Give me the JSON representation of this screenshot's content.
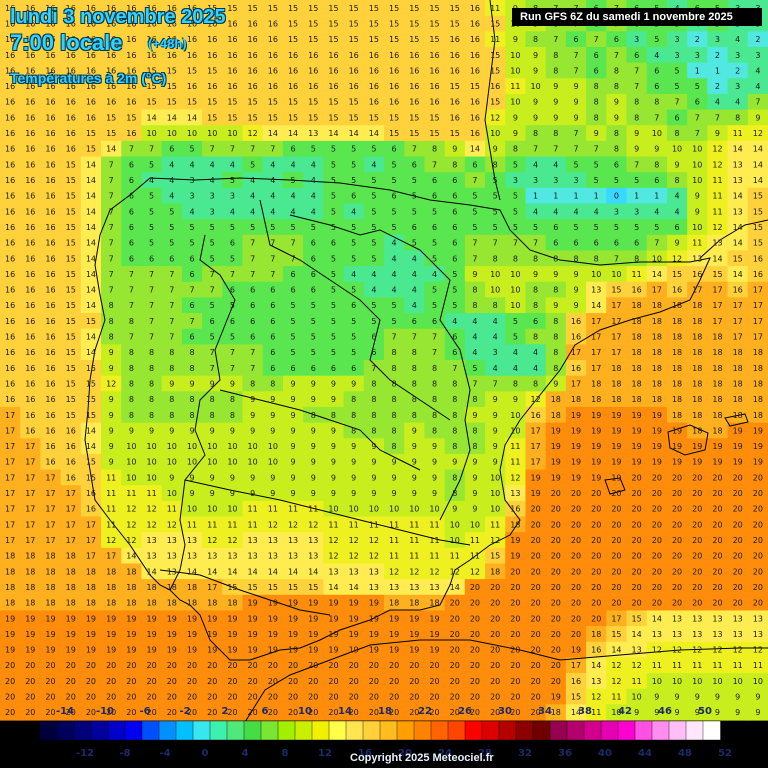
{
  "header": {
    "date_line": "lundi 3 novembre 2025",
    "time_line": "7:00 locale",
    "lead_time": "(+48h)",
    "variable": "Températures à 2m (°C)"
  },
  "run_info": "Run GFS 6Z du samedi 1 novembre 2025",
  "copyright": "Copyright 2025 Meteociel.fr",
  "legend": {
    "top_labels": [
      "-14",
      "-10",
      "-6",
      "-2",
      "2",
      "6",
      "10",
      "14",
      "18",
      "22",
      "26",
      "30",
      "34",
      "38",
      "42",
      "46",
      "50"
    ],
    "bottom_labels": [
      "-12",
      "-8",
      "-4",
      "0",
      "4",
      "8",
      "12",
      "16",
      "20",
      "24",
      "28",
      "32",
      "36",
      "40",
      "44",
      "48",
      "52"
    ],
    "colors": [
      "#00003c",
      "#00005a",
      "#00007a",
      "#00009c",
      "#0000c8",
      "#0000f0",
      "#0050ff",
      "#0090ff",
      "#00c0ff",
      "#38e6f0",
      "#3cf0b0",
      "#50e878",
      "#46dc46",
      "#78e632",
      "#a0f000",
      "#c8f000",
      "#f0f000",
      "#ffff4a",
      "#ffe650",
      "#ffd23c",
      "#ffbe1e",
      "#ffa000",
      "#ff8200",
      "#ff6400",
      "#ff4600",
      "#ff0000",
      "#dc0000",
      "#b40000",
      "#8c0000",
      "#700000",
      "#960050",
      "#b4006e",
      "#d2008c",
      "#e600b4",
      "#ff00d2",
      "#ff50e6",
      "#ff8cf0",
      "#ffbef5",
      "#ffe6fa",
      "#ffffff"
    ]
  },
  "colors": {
    "title": "#33d3ff",
    "label_text": "#1a1a1a",
    "border_line": "#000000"
  },
  "map": {
    "name": "Iberian Peninsula temperature field",
    "value_rows": [
      "16 16 16 16 16 16 16 16 16 16 15 15 15 15 15 15 15 15 15 15 15 15 15 16 11 9 8 7 7 6 7 6 5 4 6 5 3 3",
      "16 16 16 16 16 16 16 16 16 16 16 16 16 16 15 15 15 15 15 15 15 15 15 16 15 10 9 8 7 6 7 6 5 5 4 5 3 3",
      "16 16 16 16 16 16 16 16 16 16 16 16 16 16 15 15 15 15 15 15 15 15 16 16 11 9 8 7 6 7 6 3 5 3 2 3 4 2",
      "16 16 16 16 16 16 16 16 16 16 16 16 16 16 16 16 16 16 16 16 16 16 16 16 15 10 9 8 7 6 7 6 4 3 3 2 3 3",
      "16 16 16 16 16 16 16 15 15 15 15 16 16 16 16 16 16 16 16 16 16 16 16 16 15 10 9 8 7 6 8 7 6 5 1 1 2 4",
      "16 16 16 16 16 16 16 15 15 16 16 16 16 16 16 16 16 16 16 16 16 16 15 15 16 11 10 9 9 8 8 7 6 5 5 2 3 4",
      "16 16 16 16 16 16 16 15 15 15 15 15 15 15 15 15 15 15 16 16 16 16 16 16 15 10 9 9 9 8 9 8 8 7 6 4 4 7",
      "16 16 16 16 16 15 15 14 14 14 15 15 15 15 15 15 15 15 15 15 15 15 16 16 12 9 9 9 9 8 9 8 7 6 7 7 8 9",
      "16 16 16 16 15 15 16 10 10 10 10 10 12 14 14 13 14 14 14 15 15 15 15 16 10 9 8 8 7 9 8 9 10 8 7 9 11 12",
      "16 16 16 16 15 14 7 7 6 5 7 7 7 7 6 5 5 5 5 6 7 8 9 14 9 8 7 7 7 7 8 9 9 10 10 12 14 14",
      "16 16 16 15 14 7 6 5 4 4 4 4 5 4 4 4 5 5 4 5 6 7 8 6 8 5 4 4 5 5 6 7 8 9 10 12 13 14",
      "16 16 16 15 14 7 6 4 4 3 4 5 4 4 5 4 5 5 5 5 5 6 6 7 5 3 3 3 3 5 5 5 6 8 10 11 13 14",
      "16 16 16 15 14 7 6 5 4 3 3 3 4 4 4 4 5 6 5 6 5 6 6 5 5 5 1 1 1 1 0 1 1 4 9 11 14 15",
      "16 16 16 15 14 7 6 5 5 4 3 4 4 4 4 4 5 4 5 5 5 5 6 5 5 5 4 4 4 4 3 3 4 4 9 11 13 15",
      "16 16 16 15 14 7 6 5 5 5 5 5 5 5 5 5 5 5 5 5 6 6 6 5 5 5 5 6 5 5 5 5 5 6 10 12 14 15",
      "16 16 16 15 14 7 6 5 5 5 5 6 7 7 7 6 6 5 5 4 5 5 6 7 7 7 7 6 6 6 6 6 7 9 11 13 14 15",
      "16 16 16 15 14 7 6 6 6 6 5 5 7 7 7 6 5 5 5 4 4 5 6 7 8 8 8 8 8 8 7 8 10 12 13 14 15 16",
      "16 16 16 15 14 7 7 7 7 6 7 7 7 7 6 6 5 4 4 4 4 4 5 9 10 10 9 9 9 10 10 11 14 15 16 15 14 16",
      "16 16 16 15 14 7 7 7 7 7 7 6 6 6 6 6 5 5 4 4 4 5 5 8 10 10 8 8 9 13 15 16 17 16 17 17 16 17",
      "16 16 16 15 14 8 7 7 7 6 5 5 6 6 5 5 5 6 5 5 4 5 5 8 8 10 8 9 9 14 17 18 18 18 18 17 17 17",
      "16 16 16 15 15 8 8 7 7 7 6 6 6 6 5 5 5 5 5 5 6 6 4 4 4 5 6 8 16 17 17 18 18 18 18 17 17 17",
      "16 16 16 15 14 8 7 7 7 6 5 5 6 6 5 5 5 5 6 7 7 7 6 4 4 5 8 8 16 17 17 18 18 18 18 18 17 17",
      "16 16 16 15 14 9 8 8 8 8 7 7 7 6 5 5 5 5 6 8 8 7 6 4 3 4 4 8 17 17 17 18 18 18 18 18 18 18",
      "16 16 16 15 15 9 8 8 8 8 7 7 7 6 6 6 6 6 7 8 8 8 7 5 4 4 4 8 16 17 18 18 18 18 18 18 18 18",
      "16 16 16 15 15 12 8 8 9 9 9 9 8 8 9 9 9 9 8 8 8 8 8 7 7 8 8 9 17 18 18 18 18 18 18 18 18 18",
      "16 16 16 15 15 9 8 8 8 8 8 8 9 9 9 9 9 8 8 8 8 8 8 8 9 9 12 18 18 18 18 18 18 18 18 18 18 18",
      "17 16 16 15 15 9 8 8 8 8 8 8 9 9 9 8 8 8 8 8 8 8 8 9 9 10 16 18 19 19 19 19 19 18 18 18 18 18",
      "17 16 16 16 14 9 9 9 9 9 9 9 9 9 9 9 9 8 8 8 9 8 8 8 9 10 17 19 19 19 19 19 19 19 18 18 19 19",
      "17 17 16 16 14 9 10 10 10 10 10 10 10 10 9 9 9 9 9 8 9 9 8 8 9 11 17 19 19 19 19 19 19 19 19 19 19 19",
      "17 17 16 16 15 9 10 10 10 10 10 10 10 10 9 9 9 9 9 9 9 9 9 9 9 11 17 19 19 19 19 19 19 19 19 19 19 19",
      "17 17 17 16 15 11 10 10 9 9 9 9 9 9 9 9 9 9 9 9 9 9 8 9 10 12 19 19 19 19 19 20 20 20 20 20 20 20",
      "17 17 17 17 16 11 11 11 10 9 9 9 9 9 9 9 9 9 9 9 9 9 8 9 10 13 19 20 20 20 20 20 20 20 20 20 20 20",
      "17 17 17 17 16 11 12 12 11 10 10 10 11 11 11 11 10 10 10 10 10 10 9 9 10 16 20 20 20 20 20 20 20 20 20 20 20 20",
      "17 17 17 17 17 11 12 12 12 11 11 11 11 12 12 12 11 11 11 11 11 11 10 10 11 18 20 20 20 20 20 20 20 20 20 20 20 20",
      "17 17 17 17 17 12 12 13 13 13 12 12 13 13 13 13 12 12 12 11 11 11 10 11 12 19 20 20 20 20 20 20 20 20 20 20 20 20",
      "18 18 18 18 17 17 14 13 13 13 13 13 13 13 13 13 12 12 12 11 11 11 11 11 15 19 20 20 20 20 20 20 20 20 20 20 20 20",
      "18 18 18 18 18 18 18 14 13 14 14 14 14 14 14 14 13 13 13 12 12 12 12 12 18 20 20 20 20 20 20 20 20 20 20 20 20 20",
      "18 18 18 18 18 18 18 18 18 18 17 15 15 15 15 15 14 14 13 13 13 13 14 20 20 20 20 20 20 20 20 20 20 20 20 20 20 20",
      "18 18 18 18 18 18 18 18 18 18 18 18 19 19 19 19 19 19 19 18 18 18 20 20 20 20 20 20 20 20 20 20 20 20 20 20 20 20",
      "19 19 19 19 19 19 19 19 19 19 19 19 19 19 19 19 19 19 19 19 19 19 20 20 20 20 20 20 20 20 17 15 14 13 13 13 13 13",
      "19 19 19 19 19 19 19 19 19 19 19 19 19 19 19 19 19 19 19 19 19 19 20 20 20 20 20 20 20 18 15 14 13 13 13 13 13 13",
      "19 19 19 19 19 19 19 19 19 19 19 19 19 19 19 19 19 19 19 19 19 19 20 20 20 20 20 20 19 16 14 13 12 12 12 12 12 12",
      "20 20 20 20 20 20 20 20 20 20 20 20 20 20 20 20 20 20 20 20 20 20 20 20 20 20 20 20 17 14 12 12 11 11 11 11 11 11",
      "20 20 20 20 20 20 20 20 20 20 20 20 20 20 20 20 20 20 20 20 20 20 20 20 20 20 20 20 16 13 12 11 10 10 10 10 10 10",
      "20 20 20 20 20 20 20 20 20 20 20 20 20 20 20 20 20 20 20 20 20 20 20 20 20 20 20 19 15 12 11 10 9 9 9 9 9 9",
      "20 20 20 20 20 20 20 20 20 20 20 20 20 20 20 20 20 20 20 20 20 20 20 20 20 20 20 18 14 11 10 9 9 9 9 9 9 9"
    ]
  }
}
